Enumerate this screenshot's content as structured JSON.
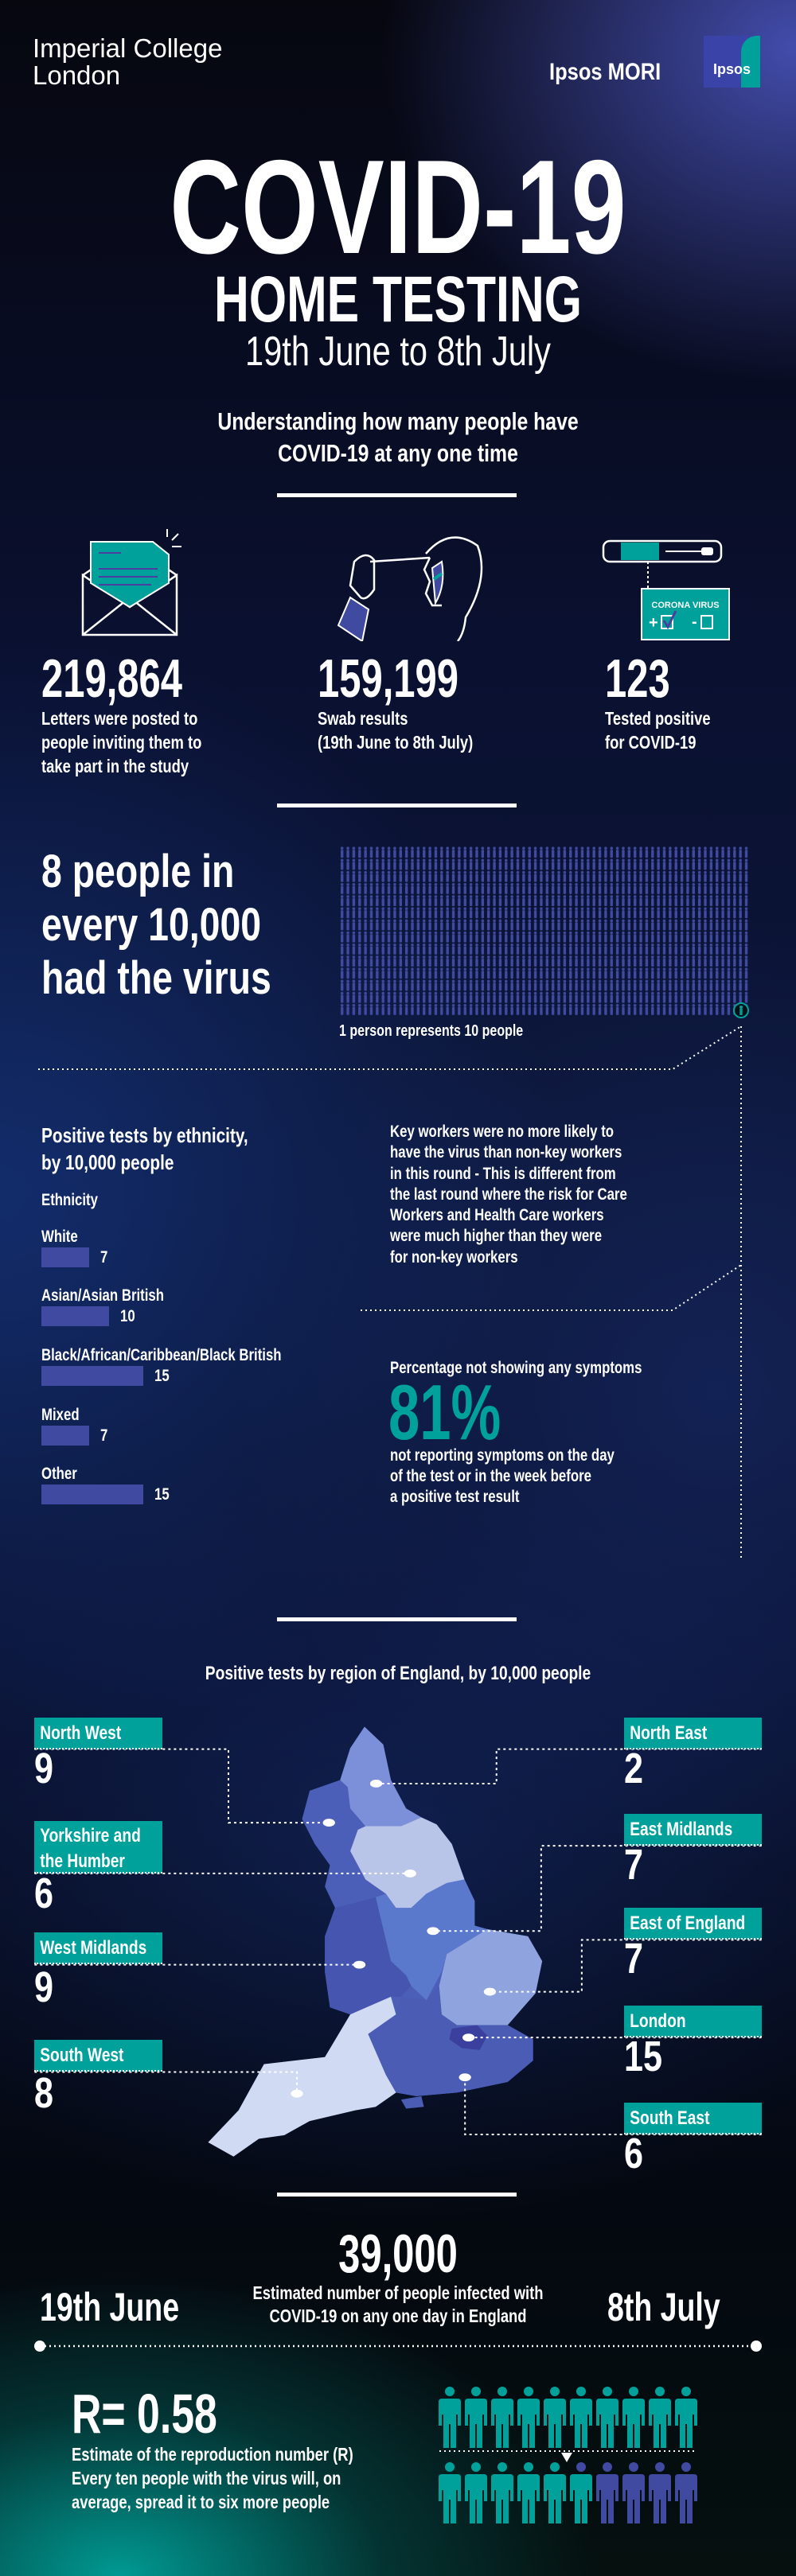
{
  "header": {
    "org1_line1": "Imperial College",
    "org1_line2": "London",
    "org2": "Ipsos MORI",
    "logo_text": "Ipsos"
  },
  "hero": {
    "title": "COVID-19",
    "subtitle": "HOME TESTING",
    "dates": "19th June to 8th July",
    "intro_line1": "Understanding how many people have",
    "intro_line2": "COVID-19 at any one time"
  },
  "stats": [
    {
      "icon": "envelope-letter-icon",
      "value": "219,864",
      "desc": [
        "Letters were posted to",
        "people inviting them to",
        "take part in the study"
      ]
    },
    {
      "icon": "nasal-swab-icon",
      "value": "159,199",
      "desc": [
        "Swab results",
        "(19th June to 8th July)"
      ]
    },
    {
      "icon": "test-kit-icon",
      "value": "123",
      "desc": [
        "Tested positive",
        "for COVID-19"
      ],
      "card_label": "CORONA VIRUS"
    }
  ],
  "prevalence": {
    "line1": "8 people in",
    "line2": "every 10,000",
    "line3": "had the virus",
    "caption": "1 person represents 10 people",
    "figure_color": "#3f4aa0",
    "highlight_color": "#00a19a"
  },
  "ethnicity": {
    "title_line1": "Positive tests by ethnicity,",
    "title_line2": "by 10,000 people",
    "axis_label": "Ethnicity",
    "chart_data": {
      "type": "bar",
      "orientation": "horizontal",
      "categories": [
        "White",
        "Asian/Asian British",
        "Black/African/Caribbean/Black British",
        "Mixed",
        "Other"
      ],
      "values": [
        7,
        10,
        15,
        7,
        15
      ],
      "color": "#3f4aa0"
    }
  },
  "key_workers": {
    "lines": [
      "Key workers were no more likely to",
      "have the virus than non-key workers",
      "in this round - This is different from",
      "the last round where the risk for Care",
      "Workers and Health Care workers",
      "were much higher than they were",
      "for non-key workers"
    ]
  },
  "symptoms": {
    "label": "Percentage not showing any symptoms",
    "value": "81%",
    "desc": [
      "not reporting symptoms on the day",
      "of the test or in the week before",
      "a positive test result"
    ],
    "color": "#00a19a"
  },
  "regions": {
    "title": "Positive tests by region of England, by 10,000 people",
    "items": [
      {
        "name": "North West",
        "value": "9"
      },
      {
        "name": "Yorkshire and",
        "name2": "the Humber",
        "value": "6"
      },
      {
        "name": "West Midlands",
        "value": "9"
      },
      {
        "name": "South West",
        "value": "8"
      },
      {
        "name": "North East",
        "value": "2"
      },
      {
        "name": "East Midlands",
        "value": "7"
      },
      {
        "name": "East of England",
        "value": "7"
      },
      {
        "name": "London",
        "value": "15"
      },
      {
        "name": "South East",
        "value": "6"
      }
    ]
  },
  "estimate": {
    "value": "39,000",
    "desc1": "Estimated number of people infected with",
    "desc2": "COVID-19 on any one day in England",
    "start": "19th June",
    "end": "8th July"
  },
  "r_number": {
    "value": "R= 0.58",
    "desc": [
      "Estimate of the reproduction number (R)",
      "Every ten people with the virus will, on",
      "average, spread it to six more people"
    ],
    "infected": 10,
    "spread": 6,
    "teal": "#00a19a",
    "purple": "#3f4aa0"
  }
}
